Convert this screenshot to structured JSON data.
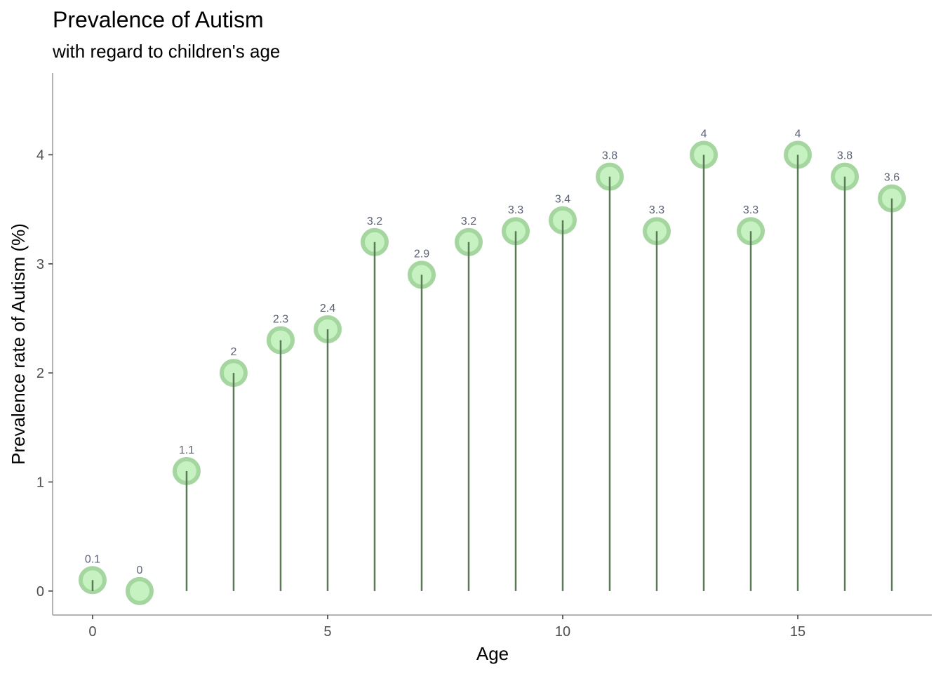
{
  "chart_data": {
    "type": "lollipop",
    "title": "Prevalence of Autism",
    "subtitle": "with regard to children's age",
    "xlabel": "Age",
    "ylabel": "Prevalence rate of Autism (%)",
    "x": [
      0,
      1,
      2,
      3,
      4,
      5,
      6,
      7,
      8,
      9,
      10,
      11,
      12,
      13,
      14,
      15,
      16,
      17
    ],
    "values": [
      0.1,
      0,
      1.1,
      2,
      2.3,
      2.4,
      3.2,
      2.9,
      3.2,
      3.3,
      3.4,
      3.8,
      3.3,
      4,
      3.3,
      4,
      3.8,
      3.6
    ],
    "data_labels": [
      "0.1",
      "0",
      "1.1",
      "2",
      "2.3",
      "2.4",
      "3.2",
      "2.9",
      "3.2",
      "3.3",
      "3.4",
      "3.8",
      "3.3",
      "4",
      "3.3",
      "4",
      "3.8",
      "3.6"
    ],
    "xlim": [
      -0.85,
      17.85
    ],
    "ylim": [
      -0.22,
      4.75
    ],
    "x_ticks": [
      0,
      5,
      10,
      15
    ],
    "x_tick_labels": [
      "0",
      "5",
      "10",
      "15"
    ],
    "y_ticks": [
      0,
      1,
      2,
      3,
      4
    ],
    "y_tick_labels": [
      "0",
      "1",
      "2",
      "3",
      "4"
    ],
    "grid": false,
    "legend": "none",
    "colors": {
      "stem": "#5b7a57",
      "point_fill": "#c6f1c0",
      "point_outline": "#a5d6a0",
      "label": "#5b6275",
      "axis": "#b3b3b3",
      "tick_text": "#4d4d4d"
    }
  }
}
